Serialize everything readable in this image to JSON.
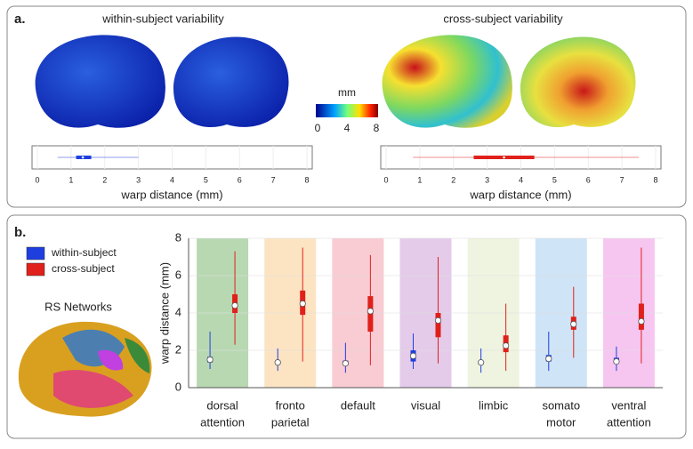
{
  "panels": {
    "a": "a.",
    "b": "b."
  },
  "colorbar": {
    "label": "mm",
    "lim": [
      0,
      8
    ],
    "ticks": [
      0,
      4,
      8
    ]
  },
  "inset_title": "RS Networks",
  "chart_data": [
    {
      "type": "hboxplot",
      "title": "within-subject variability",
      "xlabel": "warp distance (mm)",
      "xlim": [
        0,
        8
      ],
      "xticks": [
        0,
        1,
        2,
        3,
        4,
        5,
        6,
        7,
        8
      ],
      "color": "#1f3ee0",
      "box": {
        "min": 0.6,
        "q1": 1.15,
        "median": 1.35,
        "q3": 1.6,
        "max": 3.0
      }
    },
    {
      "type": "hboxplot",
      "title": "cross-subject variability",
      "xlabel": "warp distance (mm)",
      "xlim": [
        0,
        8
      ],
      "xticks": [
        0,
        1,
        2,
        3,
        4,
        5,
        6,
        7,
        8
      ],
      "color": "#e0201a",
      "box": {
        "min": 0.8,
        "q1": 2.6,
        "median": 3.5,
        "q3": 4.4,
        "max": 7.5
      }
    },
    {
      "type": "boxplot",
      "ylabel": "warp distance (mm)",
      "ylim": [
        0,
        8
      ],
      "yticks": [
        0,
        2,
        4,
        6,
        8
      ],
      "categories": [
        [
          "dorsal",
          "attention"
        ],
        [
          "fronto",
          "parietal"
        ],
        [
          "default"
        ],
        [
          "visual"
        ],
        [
          "limbic"
        ],
        [
          "somato",
          "motor"
        ],
        [
          "ventral",
          "attention"
        ]
      ],
      "category_colors": [
        "#b8d8b2",
        "#fce4c2",
        "#f9cbd3",
        "#e4cbea",
        "#eef4e0",
        "#cfe4f6",
        "#f6c6f1"
      ],
      "series": [
        {
          "name": "within-subject",
          "color": "#1f3ee0",
          "min": [
            1.0,
            0.9,
            0.8,
            1.0,
            0.8,
            0.9,
            0.9
          ],
          "q1": [
            1.35,
            1.25,
            1.2,
            1.4,
            1.25,
            1.4,
            1.3
          ],
          "median": [
            1.5,
            1.35,
            1.3,
            1.7,
            1.35,
            1.55,
            1.4
          ],
          "q3": [
            1.65,
            1.45,
            1.45,
            2.0,
            1.4,
            1.75,
            1.6
          ],
          "max": [
            3.0,
            2.1,
            2.4,
            2.9,
            2.1,
            3.0,
            2.2
          ]
        },
        {
          "name": "cross-subject",
          "color": "#e0201a",
          "min": [
            2.3,
            1.4,
            1.2,
            1.3,
            0.9,
            1.6,
            1.3
          ],
          "q1": [
            4.0,
            3.9,
            3.0,
            2.7,
            1.9,
            3.1,
            3.1
          ],
          "median": [
            4.4,
            4.5,
            4.1,
            3.6,
            2.25,
            3.4,
            3.55
          ],
          "q3": [
            5.0,
            5.2,
            4.9,
            4.0,
            2.8,
            3.8,
            4.5
          ],
          "max": [
            7.3,
            7.5,
            7.1,
            7.0,
            4.5,
            5.4,
            7.5
          ]
        }
      ]
    }
  ]
}
